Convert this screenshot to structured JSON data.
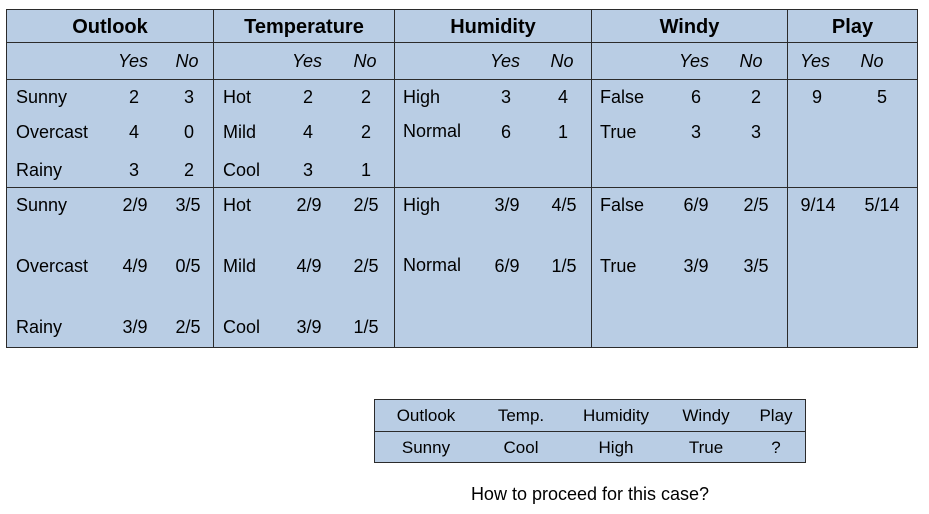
{
  "headers": [
    "Outlook",
    "Temperature",
    "Humidity",
    "Windy",
    "Play"
  ],
  "yes_label": "Yes",
  "no_label": "No",
  "counts": {
    "outlook": [
      [
        "Sunny",
        "2",
        "3"
      ],
      [
        "Overcast",
        "4",
        "0"
      ],
      [
        "Rainy",
        "3",
        "2"
      ]
    ],
    "temperature": [
      [
        "Hot",
        "2",
        "2"
      ],
      [
        "Mild",
        "4",
        "2"
      ],
      [
        "Cool",
        "3",
        "1"
      ]
    ],
    "humidity": [
      [
        "High",
        "3",
        "4"
      ],
      [
        "Normal",
        "6",
        "1"
      ]
    ],
    "windy": [
      [
        "False",
        "6",
        "2"
      ],
      [
        "True",
        "3",
        "3"
      ]
    ],
    "play": [
      "9",
      "5"
    ]
  },
  "probabilities": {
    "outlook": [
      [
        "Sunny",
        "2/9",
        "3/5"
      ],
      [
        "Overcast",
        "4/9",
        "0/5"
      ],
      [
        "Rainy",
        "3/9",
        "2/5"
      ]
    ],
    "temperature": [
      [
        "Hot",
        "2/9",
        "2/5"
      ],
      [
        "Mild",
        "4/9",
        "2/5"
      ],
      [
        "Cool",
        "3/9",
        "1/5"
      ]
    ],
    "humidity": [
      [
        "High",
        "3/9",
        "4/5"
      ],
      [
        "Normal",
        "6/9",
        "1/5"
      ]
    ],
    "windy": [
      [
        "False",
        "6/9",
        "2/5"
      ],
      [
        "True",
        "3/9",
        "3/5"
      ]
    ],
    "play": [
      "9/14",
      "5/14"
    ]
  },
  "new_case": {
    "headers": [
      "Outlook",
      "Temp.",
      "Humidity",
      "Windy",
      "Play"
    ],
    "values": [
      "Sunny",
      "Cool",
      "High",
      "True",
      "?"
    ]
  },
  "question": "How to proceed for this case?",
  "colors": {
    "cell_bg": "#b9cde4",
    "border": "#2b2b2b"
  }
}
